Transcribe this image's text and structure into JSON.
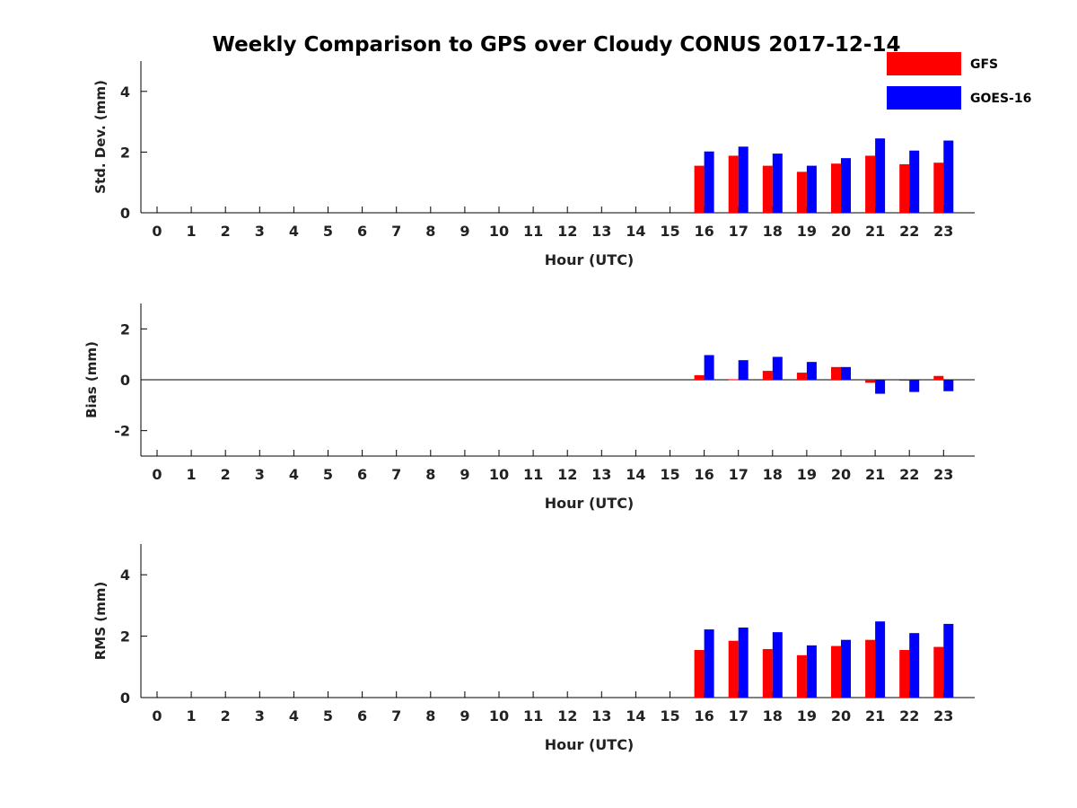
{
  "title": "Weekly Comparison to GPS over Cloudy CONUS 2017-12-14",
  "legend": [
    {
      "label": "GFS",
      "color": "#ff0000"
    },
    {
      "label": "GOES-16",
      "color": "#0000ff"
    }
  ],
  "chart_data": [
    {
      "type": "bar",
      "title": "Weekly Comparison to GPS over Cloudy CONUS 2017-12-14",
      "xlabel": "Hour (UTC)",
      "ylabel": "Std. Dev. (mm)",
      "categories": [
        "0",
        "1",
        "2",
        "3",
        "4",
        "5",
        "6",
        "7",
        "8",
        "9",
        "10",
        "11",
        "12",
        "13",
        "14",
        "15",
        "16",
        "17",
        "18",
        "19",
        "20",
        "21",
        "22",
        "23"
      ],
      "ylim": [
        0,
        5
      ],
      "yticks": [
        "0",
        "2",
        "4"
      ],
      "series": [
        {
          "name": "GFS",
          "color": "#ff0000",
          "values": [
            null,
            null,
            null,
            null,
            null,
            null,
            null,
            null,
            null,
            null,
            null,
            null,
            null,
            null,
            null,
            null,
            1.55,
            1.88,
            1.55,
            1.35,
            1.62,
            1.88,
            1.6,
            1.65
          ]
        },
        {
          "name": "GOES-16",
          "color": "#0000ff",
          "values": [
            null,
            null,
            null,
            null,
            null,
            null,
            null,
            null,
            null,
            null,
            null,
            null,
            null,
            null,
            null,
            null,
            2.02,
            2.18,
            1.95,
            1.55,
            1.8,
            2.45,
            2.05,
            2.38
          ]
        }
      ],
      "legend": "top-right"
    },
    {
      "type": "bar",
      "xlabel": "Hour (UTC)",
      "ylabel": "Bias (mm)",
      "categories": [
        "0",
        "1",
        "2",
        "3",
        "4",
        "5",
        "6",
        "7",
        "8",
        "9",
        "10",
        "11",
        "12",
        "13",
        "14",
        "15",
        "16",
        "17",
        "18",
        "19",
        "20",
        "21",
        "22",
        "23"
      ],
      "ylim": [
        -3,
        3
      ],
      "yticks": [
        "-2",
        "0",
        "2"
      ],
      "zero_line": true,
      "series": [
        {
          "name": "GFS",
          "color": "#ff0000",
          "values": [
            null,
            null,
            null,
            null,
            null,
            null,
            null,
            null,
            null,
            null,
            null,
            null,
            null,
            null,
            null,
            null,
            0.18,
            0.02,
            0.35,
            0.28,
            0.5,
            -0.12,
            -0.02,
            0.15
          ]
        },
        {
          "name": "GOES-16",
          "color": "#0000ff",
          "values": [
            null,
            null,
            null,
            null,
            null,
            null,
            null,
            null,
            null,
            null,
            null,
            null,
            null,
            null,
            null,
            null,
            0.97,
            0.77,
            0.9,
            0.7,
            0.5,
            -0.55,
            -0.48,
            -0.45
          ]
        }
      ]
    },
    {
      "type": "bar",
      "xlabel": "Hour (UTC)",
      "ylabel": "RMS (mm)",
      "categories": [
        "0",
        "1",
        "2",
        "3",
        "4",
        "5",
        "6",
        "7",
        "8",
        "9",
        "10",
        "11",
        "12",
        "13",
        "14",
        "15",
        "16",
        "17",
        "18",
        "19",
        "20",
        "21",
        "22",
        "23"
      ],
      "ylim": [
        0,
        5
      ],
      "yticks": [
        "0",
        "2",
        "4"
      ],
      "series": [
        {
          "name": "GFS",
          "color": "#ff0000",
          "values": [
            null,
            null,
            null,
            null,
            null,
            null,
            null,
            null,
            null,
            null,
            null,
            null,
            null,
            null,
            null,
            null,
            1.55,
            1.85,
            1.58,
            1.38,
            1.68,
            1.88,
            1.55,
            1.65
          ]
        },
        {
          "name": "GOES-16",
          "color": "#0000ff",
          "values": [
            null,
            null,
            null,
            null,
            null,
            null,
            null,
            null,
            null,
            null,
            null,
            null,
            null,
            null,
            null,
            null,
            2.22,
            2.28,
            2.13,
            1.7,
            1.88,
            2.48,
            2.1,
            2.4
          ]
        }
      ]
    }
  ]
}
